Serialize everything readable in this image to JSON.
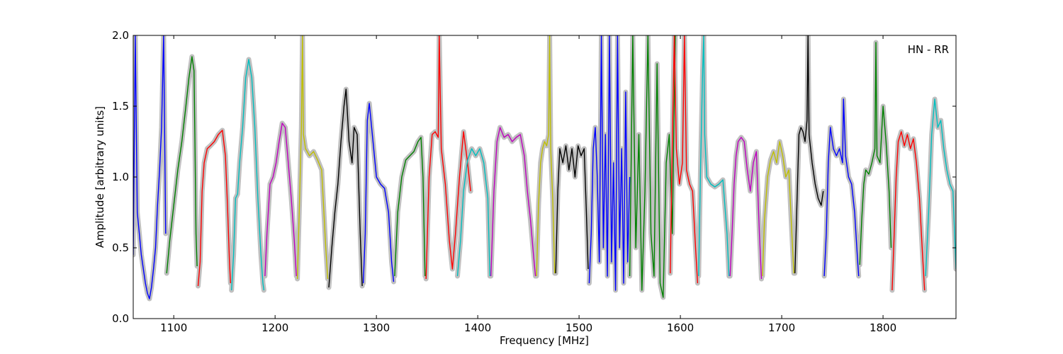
{
  "chart_data": {
    "type": "line",
    "title": "",
    "xlabel": "Frequency [MHz]",
    "ylabel": "Amplitude [arbitrary units]",
    "annotation": "HN - RR",
    "xlim": [
      1060,
      1872
    ],
    "ylim": [
      0.0,
      2.0
    ],
    "x_ticks": [
      1100,
      1200,
      1300,
      1400,
      1500,
      1600,
      1700,
      1800
    ],
    "x_tick_labels": [
      "1100",
      "1200",
      "1300",
      "1400",
      "1500",
      "1600",
      "1700",
      "1800"
    ],
    "y_ticks": [
      0.0,
      0.5,
      1.0,
      1.5,
      2.0
    ],
    "y_tick_labels": [
      "0.0",
      "0.5",
      "1.0",
      "1.5",
      "2.0"
    ],
    "grid": false,
    "legend": "none",
    "background_color": "#c0c0c0",
    "series": [
      {
        "color": "#0000ff",
        "x": [
          1060,
          1062,
          1064,
          1066,
          1068,
          1070,
          1072,
          1074,
          1076,
          1078,
          1080,
          1082,
          1084,
          1086,
          1088,
          1090,
          1092
        ],
        "y": [
          0.45,
          2.0,
          0.75,
          0.6,
          0.45,
          0.35,
          0.25,
          0.18,
          0.14,
          0.22,
          0.35,
          0.5,
          0.8,
          1.05,
          1.35,
          2.0,
          0.6
        ]
      },
      {
        "color": "#008000",
        "x": [
          1093,
          1096,
          1100,
          1104,
          1108,
          1112,
          1115,
          1118,
          1120,
          1121,
          1122,
          1123
        ],
        "y": [
          0.32,
          0.55,
          0.8,
          1.05,
          1.25,
          1.5,
          1.7,
          1.85,
          1.75,
          1.2,
          0.6,
          0.37
        ]
      },
      {
        "color": "#ff0000",
        "x": [
          1124,
          1126,
          1128,
          1130,
          1133,
          1136,
          1140,
          1144,
          1148,
          1151,
          1153,
          1155,
          1156
        ],
        "y": [
          0.23,
          0.4,
          0.9,
          1.1,
          1.2,
          1.22,
          1.25,
          1.3,
          1.33,
          1.15,
          0.8,
          0.4,
          0.25
        ]
      },
      {
        "color": "#00bfbf",
        "x": [
          1157,
          1159,
          1161,
          1163,
          1165,
          1168,
          1171,
          1174,
          1177,
          1180,
          1183,
          1186,
          1188,
          1189
        ],
        "y": [
          0.2,
          0.45,
          0.85,
          0.88,
          1.1,
          1.35,
          1.7,
          1.83,
          1.7,
          1.35,
          0.85,
          0.45,
          0.25,
          0.2
        ]
      },
      {
        "color": "#bf00bf",
        "x": [
          1190,
          1192,
          1195,
          1198,
          1201,
          1204,
          1207,
          1210,
          1213,
          1216,
          1219,
          1221
        ],
        "y": [
          0.3,
          0.6,
          0.95,
          1.0,
          1.1,
          1.25,
          1.38,
          1.35,
          1.1,
          0.85,
          0.55,
          0.3
        ]
      },
      {
        "color": "#bfbf00",
        "x": [
          1222,
          1224,
          1226,
          1227,
          1228,
          1230,
          1234,
          1238,
          1242,
          1246,
          1250,
          1252
        ],
        "y": [
          0.28,
          0.8,
          1.35,
          2.0,
          1.3,
          1.2,
          1.15,
          1.18,
          1.12,
          1.05,
          0.5,
          0.28
        ]
      },
      {
        "color": "#000000",
        "x": [
          1253,
          1256,
          1259,
          1262,
          1265,
          1268,
          1270,
          1273,
          1276,
          1278,
          1281,
          1284,
          1286
        ],
        "y": [
          0.22,
          0.5,
          0.75,
          0.95,
          1.25,
          1.5,
          1.62,
          1.25,
          1.1,
          1.35,
          1.3,
          0.6,
          0.23
        ]
      },
      {
        "color": "#0000ff",
        "x": [
          1287,
          1289,
          1291,
          1293,
          1296,
          1300,
          1304,
          1308,
          1312,
          1315,
          1317
        ],
        "y": [
          0.25,
          0.6,
          1.4,
          1.52,
          1.3,
          1.0,
          0.95,
          0.92,
          0.75,
          0.4,
          0.26
        ]
      },
      {
        "color": "#008000",
        "x": [
          1318,
          1321,
          1325,
          1329,
          1333,
          1337,
          1341,
          1344,
          1346,
          1348
        ],
        "y": [
          0.3,
          0.75,
          1.0,
          1.12,
          1.15,
          1.18,
          1.25,
          1.28,
          1.0,
          0.3
        ]
      },
      {
        "color": "#ff0000",
        "x": [
          1349,
          1352,
          1355,
          1358,
          1361,
          1362,
          1364,
          1368,
          1372,
          1375,
          1378,
          1382,
          1386,
          1390,
          1393
        ],
        "y": [
          0.28,
          1.0,
          1.3,
          1.32,
          1.28,
          2.0,
          1.2,
          0.95,
          0.55,
          0.35,
          0.6,
          1.0,
          1.32,
          1.1,
          0.9
        ]
      },
      {
        "color": "#00bfbf",
        "x": [
          1380,
          1383,
          1386,
          1390,
          1394,
          1398,
          1402,
          1406,
          1410,
          1412
        ],
        "y": [
          0.3,
          0.55,
          0.9,
          1.12,
          1.2,
          1.15,
          1.2,
          1.1,
          0.85,
          0.3
        ]
      },
      {
        "color": "#bf00bf",
        "x": [
          1413,
          1416,
          1419,
          1422,
          1426,
          1430,
          1434,
          1438,
          1442,
          1446,
          1449,
          1452,
          1455,
          1457
        ],
        "y": [
          0.3,
          0.9,
          1.25,
          1.35,
          1.28,
          1.3,
          1.25,
          1.28,
          1.3,
          1.15,
          0.9,
          0.7,
          0.45,
          0.3
        ]
      },
      {
        "color": "#bfbf00",
        "x": [
          1458,
          1460,
          1462,
          1464,
          1466,
          1468,
          1470,
          1471,
          1472,
          1474,
          1476
        ],
        "y": [
          0.3,
          0.8,
          1.1,
          1.2,
          1.25,
          1.22,
          1.3,
          2.0,
          1.2,
          0.85,
          0.32
        ]
      },
      {
        "color": "#000000",
        "x": [
          1477,
          1479,
          1481,
          1484,
          1487,
          1490,
          1493,
          1496,
          1499,
          1502,
          1505,
          1507,
          1509
        ],
        "y": [
          0.32,
          0.9,
          1.2,
          1.1,
          1.22,
          1.05,
          1.2,
          1.0,
          1.22,
          1.15,
          1.2,
          0.8,
          0.35
        ]
      },
      {
        "color": "#0000ff",
        "x": [
          1510,
          1512,
          1514,
          1516,
          1518,
          1520,
          1522,
          1524,
          1526,
          1528,
          1530,
          1532,
          1534,
          1536,
          1538,
          1540,
          1542,
          1544,
          1546,
          1548,
          1550
        ],
        "y": [
          0.25,
          0.6,
          1.2,
          1.35,
          1.0,
          0.4,
          2.0,
          0.5,
          1.3,
          0.3,
          2.0,
          0.4,
          1.1,
          0.2,
          2.0,
          0.5,
          1.2,
          0.25,
          1.6,
          0.4,
          1.0
        ]
      },
      {
        "color": "#008000",
        "x": [
          1550,
          1553,
          1556,
          1559,
          1562,
          1565,
          1568,
          1571,
          1574,
          1577,
          1580,
          1583,
          1586,
          1589,
          1592,
          1595
        ],
        "y": [
          0.3,
          2.0,
          0.5,
          1.3,
          0.2,
          0.9,
          2.0,
          0.6,
          0.3,
          1.8,
          0.25,
          0.15,
          1.1,
          1.3,
          0.6,
          2.0
        ]
      },
      {
        "color": "#ff0000",
        "x": [
          1590,
          1592,
          1594,
          1596,
          1599,
          1602,
          1604,
          1606,
          1609,
          1612,
          1615,
          1617
        ],
        "y": [
          0.32,
          1.25,
          2.0,
          1.2,
          0.95,
          1.1,
          2.0,
          1.05,
          0.95,
          0.9,
          0.5,
          0.25
        ]
      },
      {
        "color": "#00bfbf",
        "x": [
          1618,
          1620,
          1622,
          1623,
          1624,
          1626,
          1630,
          1634,
          1638,
          1642,
          1646,
          1648
        ],
        "y": [
          0.3,
          1.1,
          1.75,
          2.0,
          1.3,
          1.0,
          0.95,
          0.93,
          0.95,
          0.98,
          0.6,
          0.3
        ]
      },
      {
        "color": "#bf00bf",
        "x": [
          1649,
          1651,
          1653,
          1655,
          1657,
          1660,
          1663,
          1666,
          1669,
          1672,
          1675,
          1678,
          1680
        ],
        "y": [
          0.3,
          0.6,
          0.95,
          1.15,
          1.25,
          1.28,
          1.25,
          1.05,
          0.9,
          1.1,
          1.18,
          0.6,
          0.28
        ]
      },
      {
        "color": "#bfbf00",
        "x": [
          1681,
          1683,
          1686,
          1689,
          1692,
          1695,
          1698,
          1701,
          1704,
          1707,
          1710,
          1712
        ],
        "y": [
          0.3,
          0.7,
          1.0,
          1.12,
          1.18,
          1.1,
          1.25,
          1.15,
          1.0,
          1.05,
          0.6,
          0.32
        ]
      },
      {
        "color": "#000000",
        "x": [
          1713,
          1715,
          1717,
          1719,
          1721,
          1723,
          1725,
          1726,
          1727,
          1730,
          1733,
          1736,
          1739,
          1741
        ],
        "y": [
          0.32,
          0.8,
          1.3,
          1.35,
          1.32,
          1.25,
          1.4,
          2.0,
          1.3,
          1.1,
          0.95,
          0.85,
          0.8,
          0.9
        ]
      },
      {
        "color": "#0000ff",
        "x": [
          1742,
          1744,
          1746,
          1748,
          1751,
          1754,
          1757,
          1760,
          1761,
          1763,
          1766,
          1769,
          1772,
          1775,
          1776
        ],
        "y": [
          0.3,
          0.6,
          1.1,
          1.35,
          1.2,
          1.15,
          1.2,
          1.1,
          1.55,
          1.15,
          1.0,
          0.95,
          0.75,
          0.4,
          0.3
        ]
      },
      {
        "color": "#008000",
        "x": [
          1777,
          1779,
          1781,
          1783,
          1786,
          1789,
          1792,
          1793,
          1794,
          1797,
          1800,
          1803,
          1806,
          1808
        ],
        "y": [
          0.38,
          0.7,
          0.95,
          1.05,
          1.02,
          1.1,
          1.2,
          1.95,
          1.15,
          1.1,
          1.5,
          1.25,
          0.9,
          0.5
        ]
      },
      {
        "color": "#ff0000",
        "x": [
          1809,
          1811,
          1813,
          1815,
          1818,
          1821,
          1824,
          1827,
          1830,
          1833,
          1836,
          1839,
          1841
        ],
        "y": [
          0.2,
          0.6,
          1.0,
          1.25,
          1.32,
          1.22,
          1.3,
          1.2,
          1.27,
          1.1,
          0.85,
          0.45,
          0.2
        ]
      },
      {
        "color": "#00bfbf",
        "x": [
          1842,
          1845,
          1848,
          1851,
          1854,
          1857,
          1860,
          1863,
          1866,
          1869,
          1872
        ],
        "y": [
          0.3,
          0.75,
          1.3,
          1.55,
          1.35,
          1.4,
          1.2,
          1.05,
          0.95,
          0.9,
          0.35
        ]
      }
    ]
  }
}
